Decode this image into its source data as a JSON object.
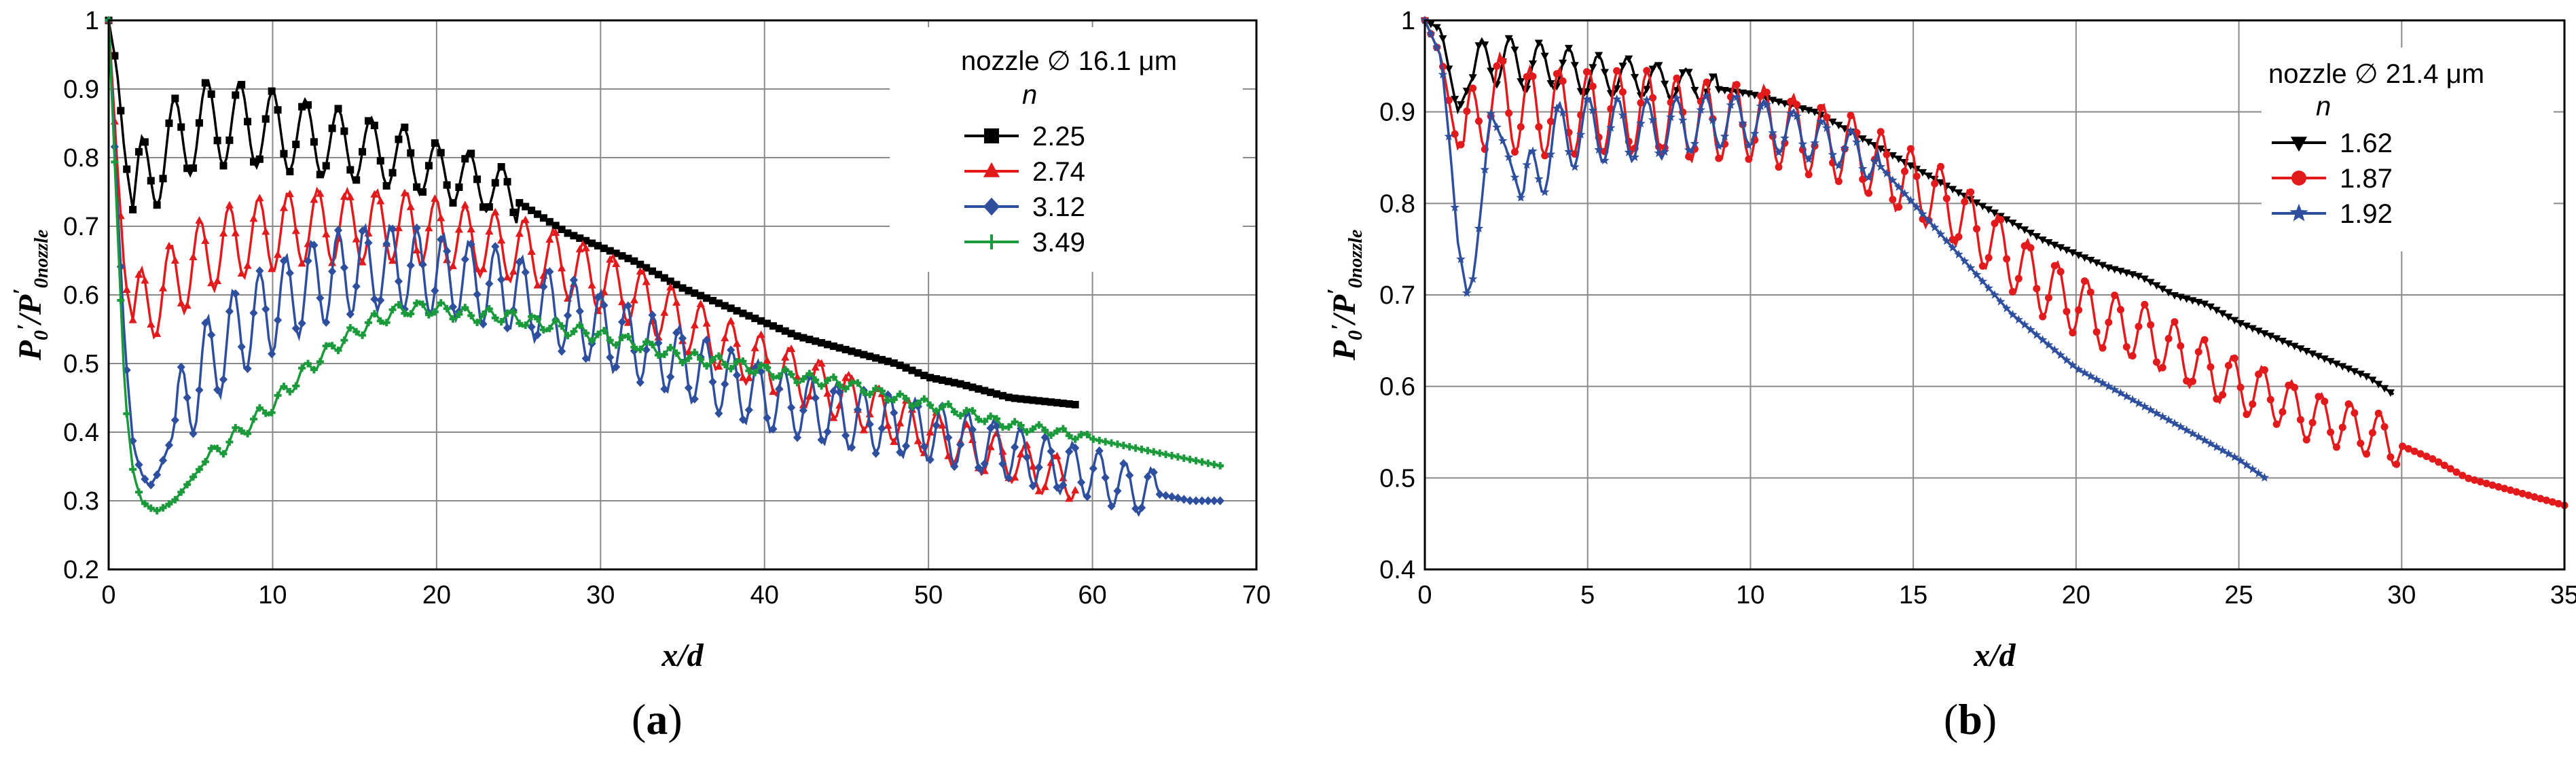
{
  "chart_data": [
    {
      "type": "line",
      "panel_label": "(a)",
      "xlabel": "x/d",
      "ylabel_main": "P",
      "ylabel_sub0": "0",
      "ylabel_prime": "′",
      "ylabel_slash": "/",
      "ylabel_nozzle": "nozzle",
      "xlim": [
        0,
        70
      ],
      "ylim": [
        0.2,
        1
      ],
      "xticks": [
        "0",
        "10",
        "20",
        "30",
        "40",
        "50",
        "60",
        "70"
      ],
      "yticks": [
        "0.2",
        "0.3",
        "0.4",
        "0.5",
        "0.6",
        "0.7",
        "0.8",
        "0.9",
        "1"
      ],
      "grid": true,
      "legend_position": "top-right",
      "legend_title": "nozzle ∅ 16.1 μm",
      "legend_subtitle": "n",
      "series": [
        {
          "name": "2.25",
          "color": "#000000",
          "marker": "square",
          "x": [
            0,
            0.5,
            1,
            1.5,
            2,
            3,
            4,
            5,
            6,
            8,
            10,
            12,
            14,
            16,
            18,
            20,
            22,
            24,
            26,
            28,
            30,
            32,
            35,
            38,
            40,
            42,
            45,
            48,
            50,
            52,
            55,
            57,
            59
          ],
          "y": [
            1,
            0.93,
            0.8,
            0.72,
            0.76,
            0.8,
            0.82,
            0.84,
            0.85,
            0.85,
            0.84,
            0.83,
            0.82,
            0.81,
            0.8,
            0.78,
            0.77,
            0.75,
            0.72,
            0.69,
            0.67,
            0.65,
            0.61,
            0.58,
            0.56,
            0.54,
            0.52,
            0.5,
            0.48,
            0.47,
            0.45,
            0.445,
            0.44
          ],
          "osc_amp": 0.07,
          "osc_period": 2.0,
          "osc_start": 1.5,
          "osc_end": 25
        },
        {
          "name": "2.74",
          "color": "#e31a1c",
          "marker": "triangle",
          "x": [
            0,
            0.5,
            1,
            1.5,
            2,
            3,
            4,
            5,
            6,
            8,
            10,
            12,
            14,
            16,
            18,
            20,
            22,
            24,
            26,
            28,
            30,
            32,
            35,
            38,
            40,
            42,
            45,
            48,
            50,
            52,
            55,
            57,
            59
          ],
          "y": [
            1,
            0.8,
            0.62,
            0.56,
            0.58,
            0.6,
            0.62,
            0.64,
            0.66,
            0.68,
            0.69,
            0.7,
            0.7,
            0.7,
            0.7,
            0.69,
            0.68,
            0.67,
            0.66,
            0.64,
            0.62,
            0.6,
            0.56,
            0.52,
            0.5,
            0.48,
            0.45,
            0.42,
            0.4,
            0.38,
            0.36,
            0.34,
            0.33
          ],
          "osc_amp": 0.06,
          "osc_period": 1.8,
          "osc_start": 1.5,
          "osc_end": 59
        },
        {
          "name": "3.12",
          "color": "#2e4f9e",
          "marker": "diamond",
          "x": [
            0,
            0.5,
            1,
            1.5,
            2,
            2.5,
            3,
            4,
            5,
            6,
            8,
            10,
            12,
            14,
            16,
            18,
            20,
            22,
            24,
            26,
            28,
            30,
            32,
            35,
            38,
            40,
            42,
            45,
            48,
            50,
            52,
            55,
            58,
            60,
            62,
            64,
            66,
            68
          ],
          "y": [
            1,
            0.75,
            0.52,
            0.38,
            0.34,
            0.32,
            0.34,
            0.4,
            0.46,
            0.5,
            0.55,
            0.58,
            0.61,
            0.63,
            0.64,
            0.64,
            0.63,
            0.62,
            0.61,
            0.59,
            0.57,
            0.55,
            0.53,
            0.5,
            0.47,
            0.45,
            0.44,
            0.42,
            0.41,
            0.4,
            0.39,
            0.37,
            0.35,
            0.34,
            0.32,
            0.31,
            0.3,
            0.3
          ],
          "osc_amp": 0.07,
          "osc_period": 1.6,
          "osc_start": 4,
          "osc_end": 64
        },
        {
          "name": "3.49",
          "color": "#1a9a3a",
          "marker": "cross",
          "x": [
            0,
            0.5,
            1,
            1.5,
            2,
            2.5,
            3,
            4,
            5,
            6,
            8,
            10,
            12,
            14,
            16,
            18,
            20,
            22,
            24,
            26,
            28,
            30,
            32,
            35,
            38,
            40,
            42,
            45,
            48,
            50,
            52,
            55,
            58,
            60,
            62,
            64,
            66,
            68
          ],
          "y": [
            1,
            0.72,
            0.45,
            0.34,
            0.3,
            0.29,
            0.285,
            0.3,
            0.33,
            0.36,
            0.4,
            0.44,
            0.49,
            0.53,
            0.56,
            0.58,
            0.58,
            0.57,
            0.57,
            0.56,
            0.55,
            0.54,
            0.53,
            0.51,
            0.5,
            0.49,
            0.48,
            0.47,
            0.45,
            0.44,
            0.43,
            0.41,
            0.4,
            0.39,
            0.38,
            0.37,
            0.36,
            0.35
          ],
          "osc_amp": 0.012,
          "osc_period": 1.4,
          "osc_start": 6,
          "osc_end": 60
        }
      ]
    },
    {
      "type": "line",
      "panel_label": "(b)",
      "xlabel": "x/d",
      "ylabel_main": "P",
      "ylabel_sub0": "0",
      "ylabel_prime": "′",
      "ylabel_slash": "/",
      "ylabel_nozzle": "nozzle",
      "xlim": [
        0,
        35
      ],
      "ylim": [
        0.4,
        1
      ],
      "xticks": [
        "0",
        "5",
        "10",
        "15",
        "20",
        "25",
        "30",
        "35"
      ],
      "yticks": [
        "0.4",
        "0.5",
        "0.6",
        "0.7",
        "0.8",
        "0.9",
        "1"
      ],
      "grid": true,
      "legend_position": "top-right",
      "legend_title": "nozzle ∅ 21.4 μm",
      "legend_subtitle": "n",
      "series": [
        {
          "name": "1.62",
          "color": "#000000",
          "marker": "triangle-down",
          "x": [
            0,
            0.5,
            1,
            1.5,
            2,
            3,
            4,
            5,
            6,
            7,
            8,
            9,
            10,
            11,
            12,
            13,
            14,
            15,
            16,
            17,
            18,
            19,
            20,
            21,
            22,
            23,
            24,
            25,
            26,
            27,
            28,
            29,
            29.8
          ],
          "y": [
            1,
            0.99,
            0.9,
            0.94,
            0.96,
            0.95,
            0.95,
            0.94,
            0.94,
            0.935,
            0.93,
            0.925,
            0.92,
            0.91,
            0.9,
            0.88,
            0.86,
            0.84,
            0.82,
            0.8,
            0.78,
            0.76,
            0.745,
            0.73,
            0.72,
            0.7,
            0.69,
            0.67,
            0.655,
            0.64,
            0.625,
            0.61,
            0.59
          ],
          "osc_amp": 0.03,
          "osc_period": 0.9,
          "osc_start": 1.5,
          "osc_end": 9
        },
        {
          "name": "1.87",
          "color": "#e31a1c",
          "marker": "circle",
          "x": [
            0,
            0.5,
            1,
            1.5,
            2,
            3,
            4,
            5,
            6,
            7,
            8,
            9,
            10,
            11,
            12,
            13,
            14,
            15,
            16,
            17,
            18,
            19,
            20,
            21,
            22,
            23,
            24,
            25,
            26,
            27,
            28,
            29,
            30,
            31,
            32,
            33,
            34,
            35
          ],
          "y": [
            1,
            0.96,
            0.86,
            0.88,
            0.92,
            0.9,
            0.9,
            0.9,
            0.9,
            0.9,
            0.89,
            0.89,
            0.89,
            0.88,
            0.87,
            0.86,
            0.84,
            0.82,
            0.8,
            0.77,
            0.74,
            0.71,
            0.69,
            0.67,
            0.66,
            0.64,
            0.62,
            0.6,
            0.59,
            0.57,
            0.56,
            0.55,
            0.535,
            0.52,
            0.5,
            0.49,
            0.48,
            0.47
          ],
          "osc_amp": 0.05,
          "osc_period": 0.9,
          "osc_start": 1.2,
          "osc_end": 30
        },
        {
          "name": "1.92",
          "color": "#2e4f9e",
          "marker": "star",
          "x": [
            0,
            0.5,
            0.8,
            1,
            1.3,
            1.5,
            1.8,
            2,
            2.5,
            3,
            3.5,
            4,
            5,
            6,
            7,
            8,
            9,
            10,
            11,
            12,
            13,
            14,
            15,
            16,
            17,
            18,
            19,
            20,
            21,
            22,
            23,
            24,
            25,
            25.8
          ],
          "y": [
            1,
            0.96,
            0.85,
            0.76,
            0.7,
            0.72,
            0.82,
            0.9,
            0.86,
            0.8,
            0.84,
            0.87,
            0.88,
            0.88,
            0.88,
            0.885,
            0.89,
            0.89,
            0.88,
            0.87,
            0.86,
            0.84,
            0.8,
            0.76,
            0.72,
            0.68,
            0.65,
            0.62,
            0.6,
            0.58,
            0.56,
            0.54,
            0.52,
            0.5
          ],
          "osc_amp": 0.04,
          "osc_period": 0.9,
          "osc_start": 3,
          "osc_end": 14
        }
      ]
    }
  ]
}
